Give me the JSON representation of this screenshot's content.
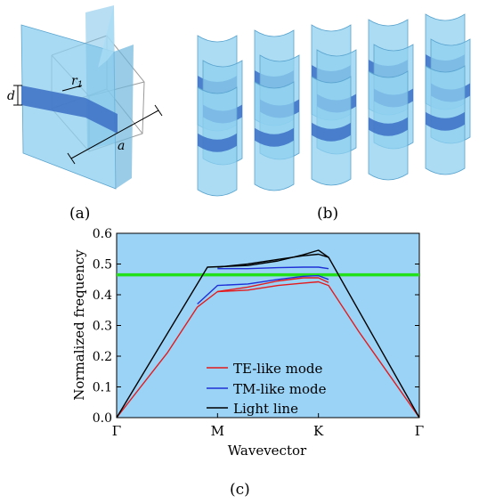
{
  "labels": {
    "a": "(a)",
    "b": "(b)",
    "c": "(c)"
  },
  "unit_cell": {
    "d_label": "d",
    "r_label": "r",
    "r_sub": "1",
    "a_label": "a"
  },
  "colors": {
    "prism": "#8fd0ef",
    "prism_dark": "#6fb6dd",
    "slab": "#3b6fc4",
    "plot_bg": "#9bd3f7",
    "te": "#e41a1c",
    "tm": "#1f2fd6",
    "light": "#000000",
    "gap_line": "#22e01a"
  },
  "chart_data": {
    "type": "line",
    "title": "",
    "xlabel": "Wavevector",
    "ylabel": "Normalized frequency",
    "ylim": [
      0,
      0.6
    ],
    "yticks": [
      "0.0",
      "0.1",
      "0.2",
      "0.3",
      "0.4",
      "0.5",
      "0.6"
    ],
    "xticks": [
      "Γ",
      "M",
      "K",
      "Γ"
    ],
    "x": [
      0,
      1,
      2,
      3
    ],
    "gap_line": {
      "y": 0.465,
      "color": "#22e01a"
    },
    "grid": false,
    "legend_position": "bottom-center",
    "series": [
      {
        "name": "TE-like mode",
        "color": "#e41a1c",
        "points": [
          [
            0,
            0
          ],
          [
            0.5,
            0.21
          ],
          [
            0.8,
            0.36
          ],
          [
            1,
            0.41
          ],
          [
            1.3,
            0.415
          ],
          [
            1.6,
            0.43
          ],
          [
            1.85,
            0.438
          ],
          [
            2,
            0.442
          ],
          [
            2.1,
            0.43
          ],
          [
            2.4,
            0.28
          ],
          [
            2.7,
            0.14
          ],
          [
            3,
            0
          ]
        ]
      },
      {
        "name": "TE-like mode",
        "color": "#e41a1c",
        "points": [
          [
            1,
            0.41
          ],
          [
            1.3,
            0.425
          ],
          [
            1.6,
            0.445
          ],
          [
            1.85,
            0.455
          ],
          [
            2,
            0.455
          ],
          [
            2.1,
            0.44
          ]
        ]
      },
      {
        "name": "TM-like mode",
        "color": "#1f2fd6",
        "points": [
          [
            0.8,
            0.37
          ],
          [
            1,
            0.43
          ],
          [
            1.3,
            0.435
          ],
          [
            1.6,
            0.45
          ],
          [
            1.85,
            0.46
          ],
          [
            2,
            0.462
          ],
          [
            2.1,
            0.45
          ]
        ]
      },
      {
        "name": "TM-like mode",
        "color": "#1f2fd6",
        "points": [
          [
            1,
            0.485
          ],
          [
            1.3,
            0.485
          ],
          [
            1.6,
            0.488
          ],
          [
            1.85,
            0.49
          ],
          [
            2,
            0.49
          ],
          [
            2.1,
            0.485
          ]
        ]
      },
      {
        "name": "Light line",
        "color": "#000000",
        "points": [
          [
            0,
            0
          ],
          [
            0.9,
            0.49
          ],
          [
            1.3,
            0.495
          ],
          [
            1.6,
            0.51
          ],
          [
            1.85,
            0.53
          ],
          [
            2,
            0.545
          ],
          [
            2.1,
            0.522
          ],
          [
            3,
            0
          ]
        ]
      },
      {
        "name": "Light line",
        "color": "#000000",
        "points": [
          [
            1,
            0.49
          ],
          [
            1.3,
            0.5
          ],
          [
            1.6,
            0.515
          ],
          [
            1.85,
            0.527
          ],
          [
            2,
            0.532
          ],
          [
            2.1,
            0.522
          ]
        ]
      }
    ],
    "legend": [
      {
        "name": "TE-like mode",
        "color": "#e41a1c"
      },
      {
        "name": "TM-like mode",
        "color": "#1f2fd6"
      },
      {
        "name": "Light line",
        "color": "#000000"
      }
    ]
  }
}
